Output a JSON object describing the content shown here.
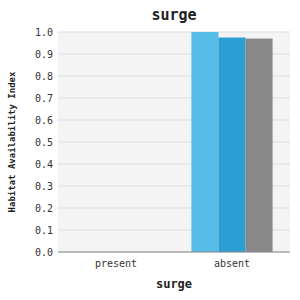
{
  "chart_data": {
    "type": "bar",
    "title": "surge",
    "xlabel": "surge",
    "ylabel": "Habitat Availability Index",
    "categories": [
      "present",
      "absent"
    ],
    "series": [
      {
        "color": "#55bde8",
        "values": [
          0.0,
          1.0
        ]
      },
      {
        "color": "#2b9fd4",
        "values": [
          0.0,
          0.975
        ]
      },
      {
        "color": "#888888",
        "values": [
          0.0,
          0.97
        ]
      }
    ],
    "ylim": [
      0.0,
      1.0
    ],
    "yticks": [
      {
        "value": 0.0,
        "label": "0.0"
      },
      0.1,
      0.2,
      0.3,
      0.4,
      0.5,
      0.6,
      0.7,
      0.8,
      0.9,
      {
        "value": 1.0,
        "label": "1.0"
      }
    ],
    "grid": true
  }
}
